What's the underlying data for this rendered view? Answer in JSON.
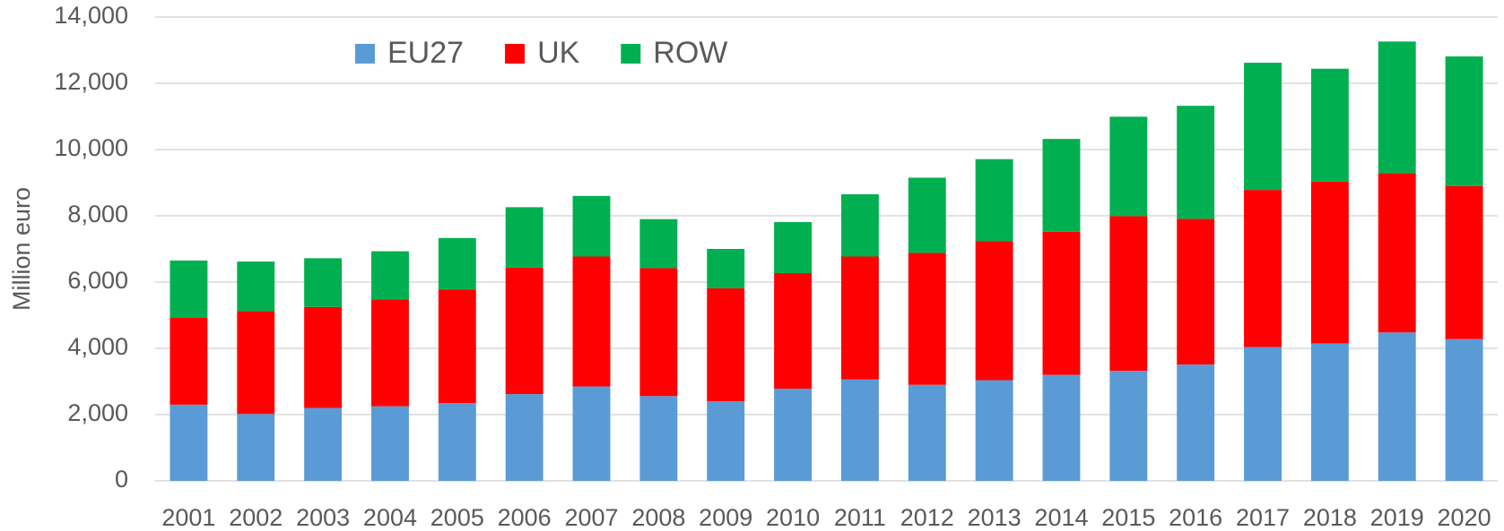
{
  "chart_data": {
    "type": "stacked_bar",
    "y_label": "Million euro",
    "categories": [
      "2001",
      "2002",
      "2003",
      "2004",
      "2005",
      "2006",
      "2007",
      "2008",
      "2009",
      "2010",
      "2011",
      "2012",
      "2013",
      "2014",
      "2015",
      "2016",
      "2017",
      "2018",
      "2019",
      "2020"
    ],
    "series": [
      {
        "name": "EU27",
        "color": "#5b9bd5",
        "values": [
          2300,
          2020,
          2200,
          2250,
          2350,
          2620,
          2850,
          2560,
          2400,
          2780,
          3060,
          2900,
          3040,
          3200,
          3320,
          3510,
          4040,
          4150,
          4480,
          4280
        ]
      },
      {
        "name": "UK",
        "color": "#ff0000",
        "values": [
          2620,
          3100,
          3050,
          3230,
          3430,
          3820,
          3920,
          3860,
          3410,
          3490,
          3710,
          3980,
          4200,
          4320,
          4670,
          4400,
          4740,
          4880,
          4810,
          4620
        ]
      },
      {
        "name": "ROW",
        "color": "#00b050",
        "values": [
          1730,
          1500,
          1470,
          1450,
          1550,
          1820,
          1830,
          1480,
          1190,
          1540,
          1880,
          2270,
          2470,
          2800,
          3000,
          3410,
          3840,
          3410,
          3970,
          3910
        ]
      }
    ],
    "ylim": [
      0,
      14000
    ],
    "yticks": [
      0,
      {
        "value": 2000,
        "label": "2,000"
      },
      {
        "value": 4000,
        "label": "4,000"
      },
      {
        "value": 6000,
        "label": "6,000"
      },
      {
        "value": 8000,
        "label": "8,000"
      },
      {
        "value": 10000,
        "label": "10,000"
      },
      {
        "value": 12000,
        "label": "12,000"
      },
      {
        "value": 14000,
        "label": "14,000"
      }
    ],
    "grid": true,
    "legend": "top-left"
  }
}
